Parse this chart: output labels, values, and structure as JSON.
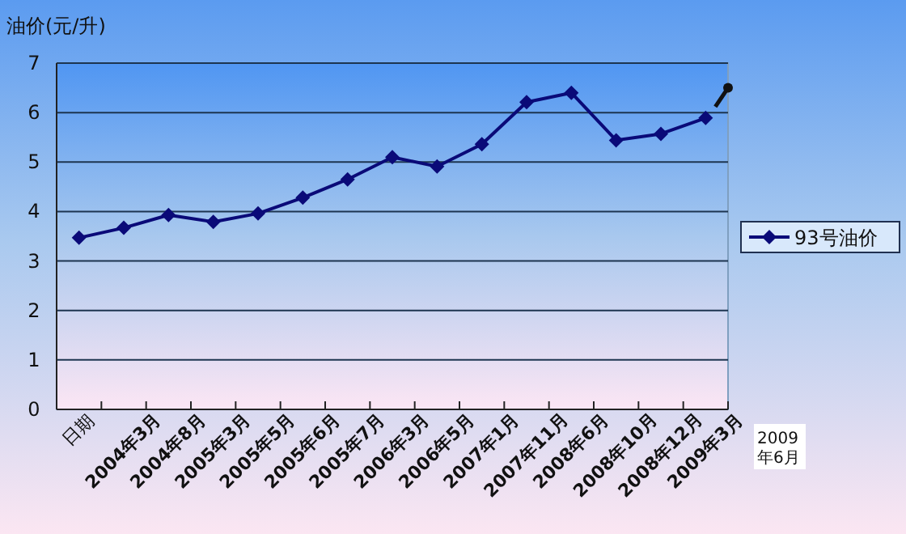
{
  "chart_data": {
    "type": "line",
    "ylabel": "油价(元/升)",
    "categories": [
      "日期",
      "2004年3月",
      "2004年8月",
      "2005年3月",
      "2005年5月",
      "2005年6月",
      "2005年7月",
      "2006年3月",
      "2006年5月",
      "2007年1月",
      "2007年11月",
      "2008年6月",
      "2008年10月",
      "2008年12月",
      "2009年3月"
    ],
    "series": [
      {
        "name": "93号油价",
        "color": "#0a0a78",
        "values": [
          3.47,
          3.67,
          3.93,
          3.79,
          3.96,
          4.28,
          4.65,
          5.1,
          4.91,
          5.36,
          6.21,
          6.4,
          5.44,
          5.57,
          5.89
        ]
      }
    ],
    "annotations": [
      "2009年6月"
    ],
    "ylim": [
      0,
      7
    ],
    "yticks": [
      0,
      1,
      2,
      3,
      4,
      5,
      6,
      7
    ],
    "grid": "y",
    "legend": "right",
    "marker": "diamond",
    "line_style": "solid"
  }
}
